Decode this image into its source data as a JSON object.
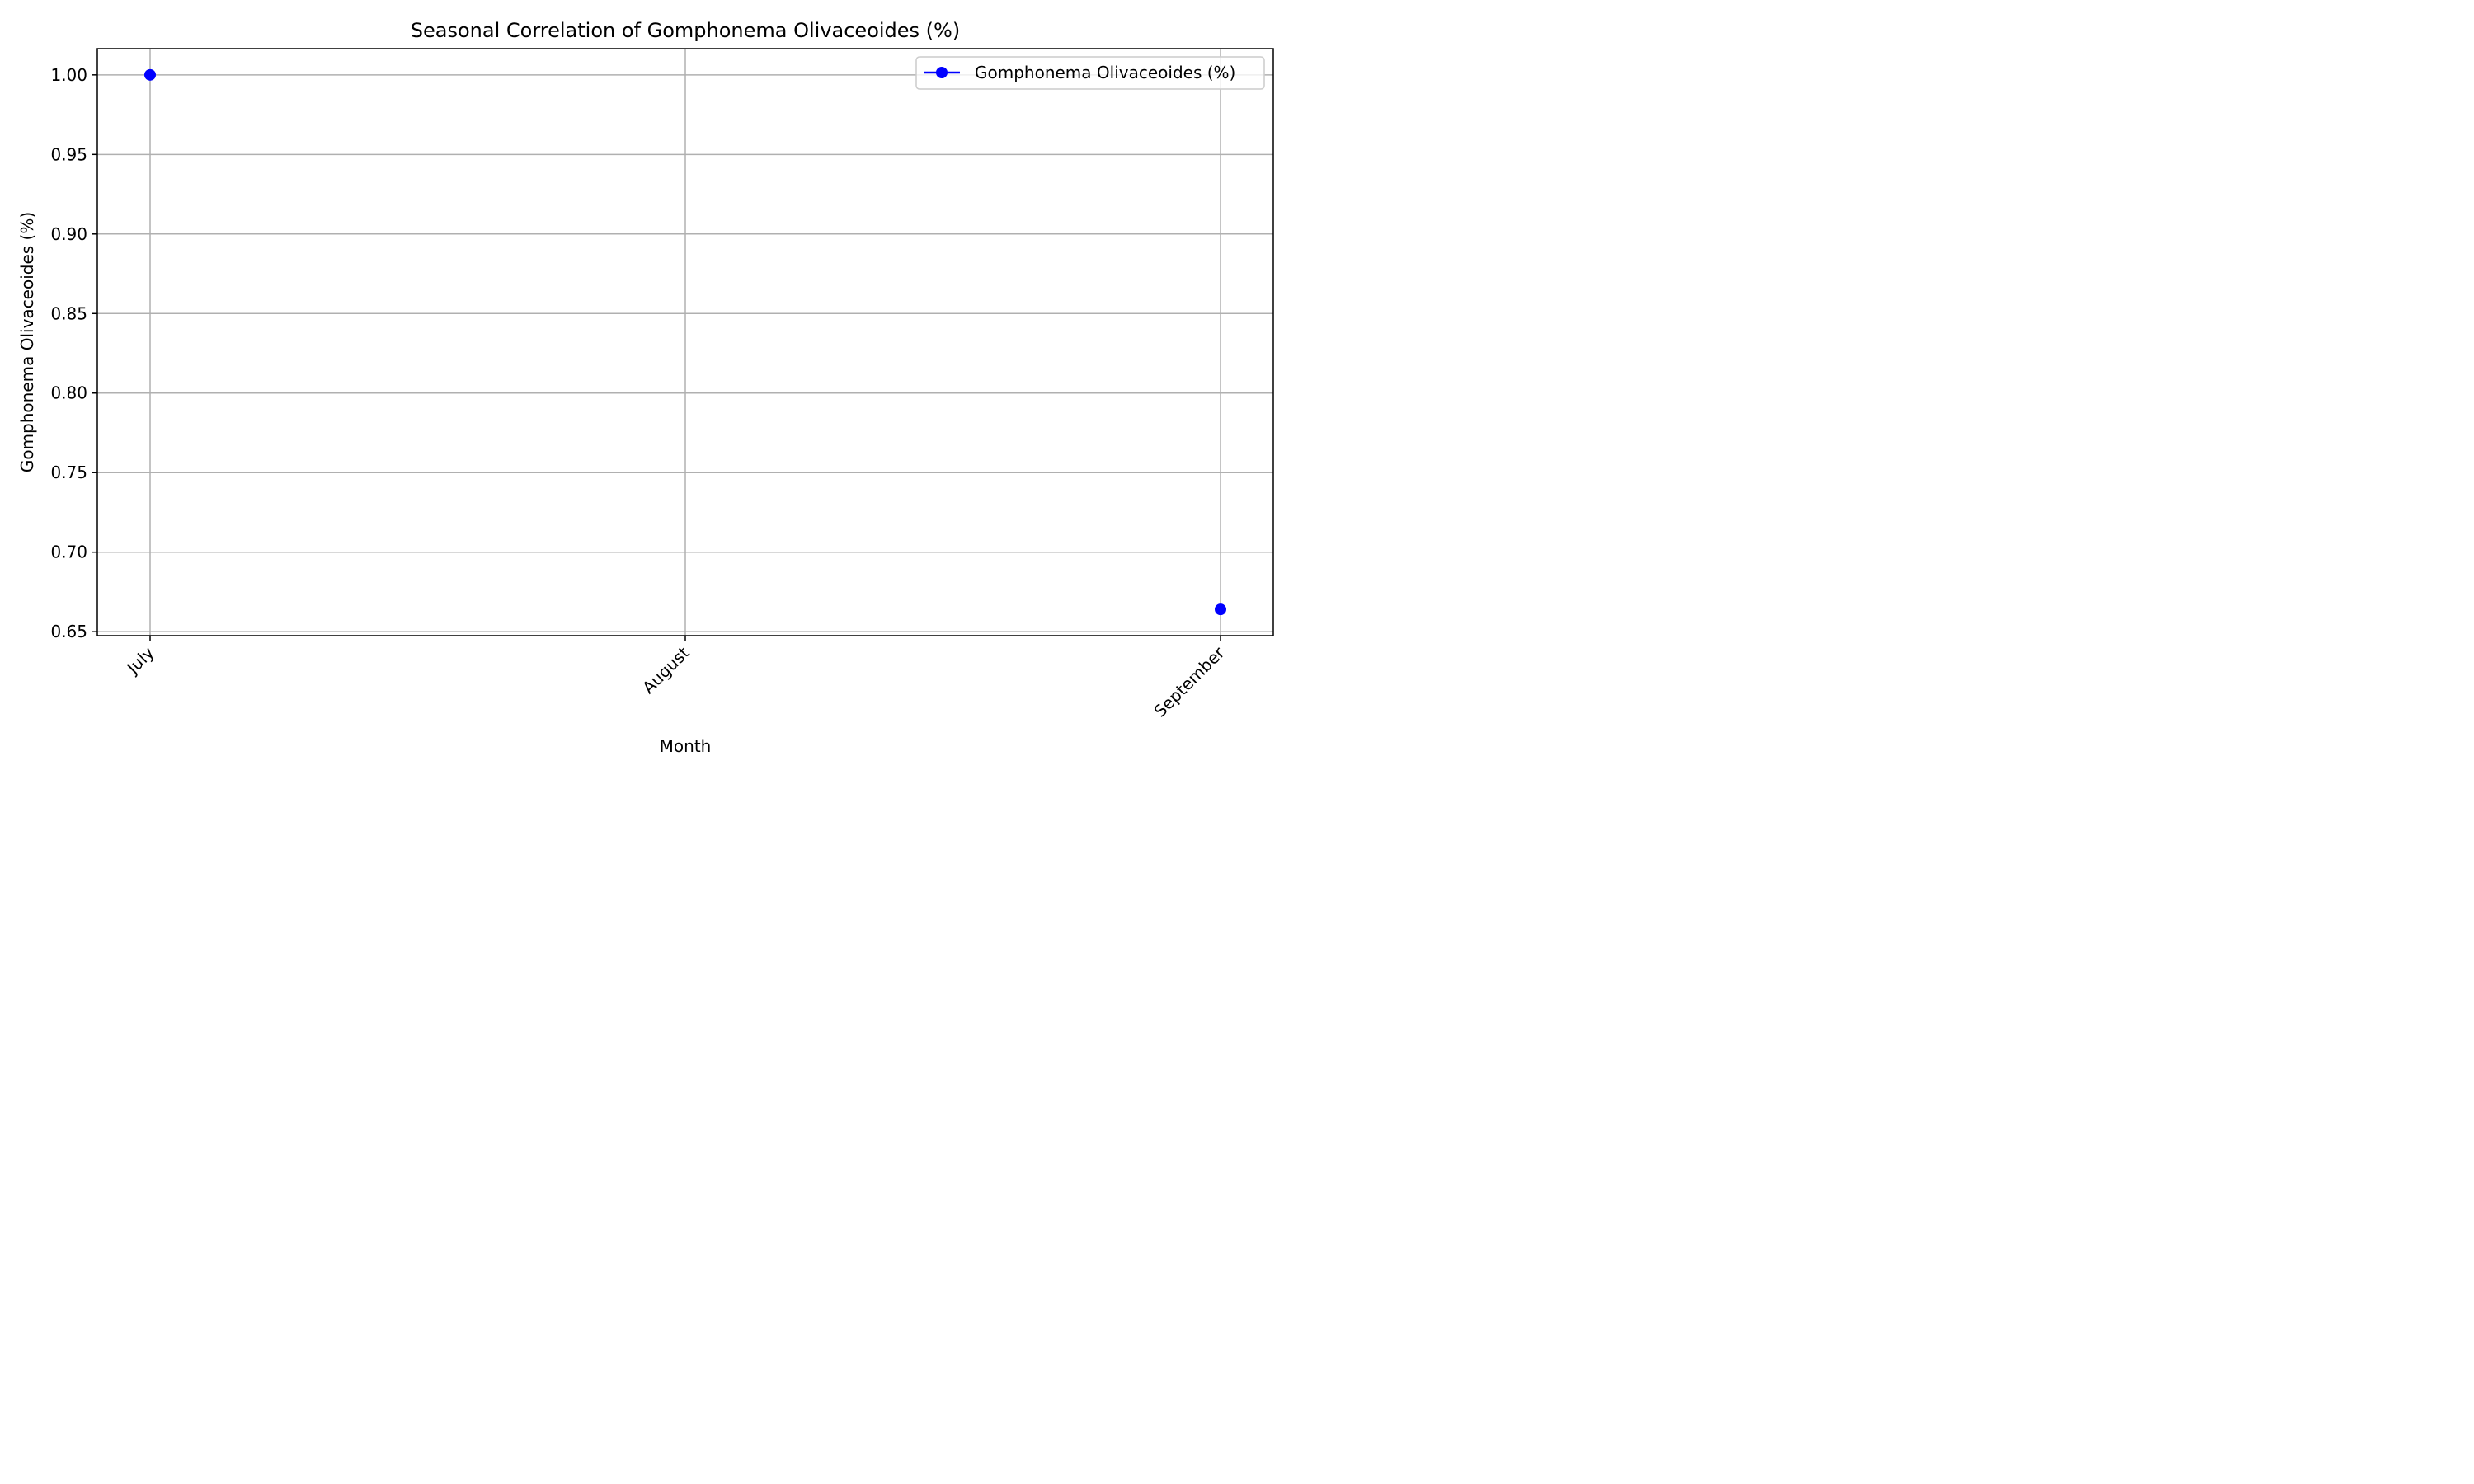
{
  "chart_data": {
    "type": "line",
    "title": "Seasonal Correlation of Gomphonema Olivaceoides (%)",
    "xlabel": "Month",
    "ylabel": "Gomphonema Olivaceoides (%)",
    "categories": [
      "July",
      "August",
      "September"
    ],
    "series": [
      {
        "name": "Gomphonema Olivaceoides (%)",
        "color": "#0000ff",
        "values": [
          1.0,
          null,
          0.664
        ]
      }
    ],
    "ylim": [
      0.6475,
      1.0165
    ],
    "yticks": [
      0.65,
      0.7,
      0.75,
      0.8,
      0.85,
      0.9,
      0.95,
      1.0
    ],
    "ytick_labels": [
      "0.65",
      "0.70",
      "0.75",
      "0.80",
      "0.85",
      "0.90",
      "0.95",
      "1.00"
    ],
    "grid": true,
    "legend_position": "top-right"
  }
}
